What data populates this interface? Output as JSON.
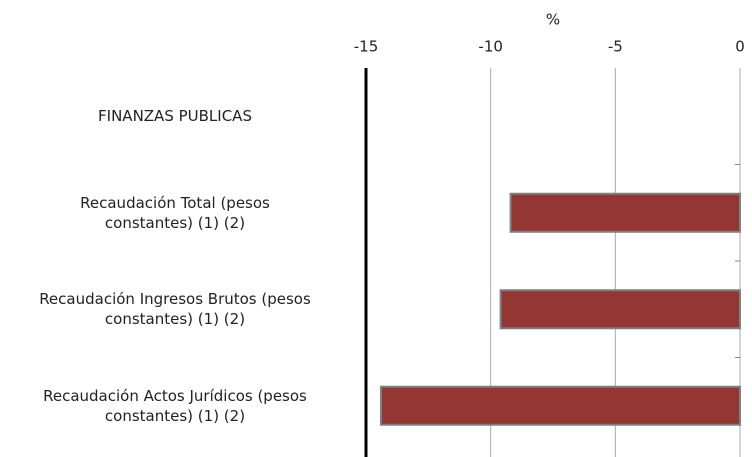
{
  "chart_data": {
    "type": "bar",
    "orientation": "horizontal",
    "xlabel": "%",
    "categories": [
      "FINANZAS PUBLICAS",
      "Recaudación Total (pesos\nconstantes)  (1) (2)",
      "Recaudación Ingresos Brutos (pesos\nconstantes)  (1) (2)",
      "Recaudación Actos Jurídicos (pesos\nconstantes)  (1) (2)"
    ],
    "values": [
      null,
      -9.2,
      -9.6,
      -14.4
    ],
    "color": "#943634",
    "xlim": [
      -15,
      0
    ],
    "xticks": [
      -15,
      -10,
      -5,
      0
    ],
    "grid": true
  }
}
